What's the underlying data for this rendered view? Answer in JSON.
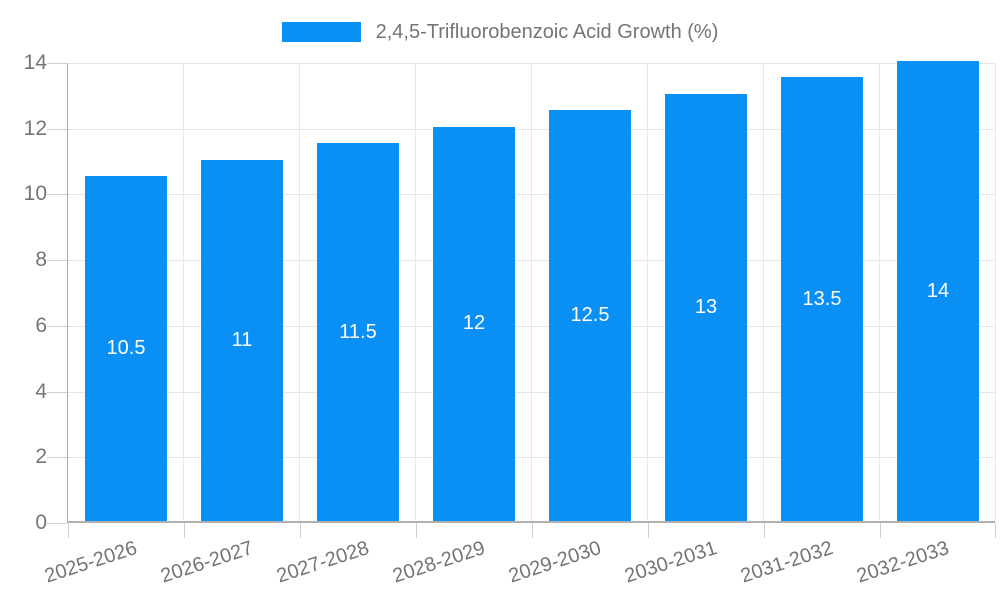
{
  "legend": {
    "label": "2,4,5-Trifluorobenzoic Acid Growth (%)"
  },
  "colors": {
    "bar": "#0a90f4",
    "axis": "#b0b0b0",
    "grid": "#e7e7e7",
    "tick": "#cfcfcf",
    "text": "#757575",
    "bar_label": "#ffffff",
    "background": "#ffffff"
  },
  "chart_data": {
    "type": "bar",
    "title": "2,4,5-Trifluorobenzoic Acid Growth (%)",
    "series_name": "2,4,5-Trifluorobenzoic Acid Growth (%)",
    "categories": [
      "2025-2026",
      "2026-2027",
      "2027-2028",
      "2028-2029",
      "2029-2030",
      "2030-2031",
      "2031-2032",
      "2032-2033"
    ],
    "values": [
      10.5,
      11,
      11.5,
      12,
      12.5,
      13,
      13.5,
      14
    ],
    "bar_labels": [
      "10.5",
      "11",
      "11.5",
      "12",
      "12.5",
      "13",
      "13.5",
      "14"
    ],
    "xlabel": "",
    "ylabel": "",
    "ylim": [
      0,
      14
    ],
    "yticks": [
      0,
      2,
      4,
      6,
      8,
      10,
      12,
      14
    ],
    "grid": true,
    "legend_position": "top",
    "bar_label_position": "inside-center",
    "xtick_rotation_deg": -18
  }
}
